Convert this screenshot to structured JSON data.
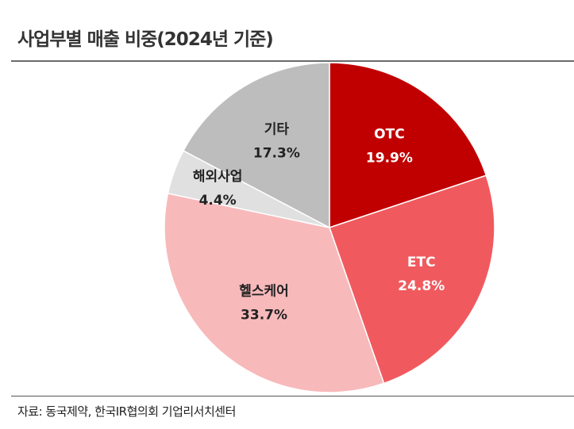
{
  "header": {
    "title": "사업부별 매출 비중(2024년 기준)"
  },
  "footer": {
    "source": "자료: 동국제약, 한국IR협의회 기업리서치센터"
  },
  "chart_data": {
    "type": "pie",
    "title": "사업부별 매출 비중(2024년 기준)",
    "start": "12 o'clock",
    "direction": "clockwise",
    "slices": [
      {
        "label": "OTC",
        "value": 19.9,
        "value_label": "19.9%",
        "color": "#c00000",
        "text_color": "#ffffff"
      },
      {
        "label": "ETC",
        "value": 24.8,
        "value_label": "24.8%",
        "color": "#f05a5e",
        "text_color": "#ffffff"
      },
      {
        "label": "헬스케어",
        "value": 33.7,
        "value_label": "33.7%",
        "color": "#f8b9bb",
        "text_color": "#222222"
      },
      {
        "label": "해외사업",
        "value": 4.4,
        "value_label": "4.4%",
        "color": "#e0e0e0",
        "text_color": "#222222"
      },
      {
        "label": "기타",
        "value": 17.3,
        "value_label": "17.3%",
        "color": "#bdbdbd",
        "text_color": "#222222"
      }
    ]
  }
}
